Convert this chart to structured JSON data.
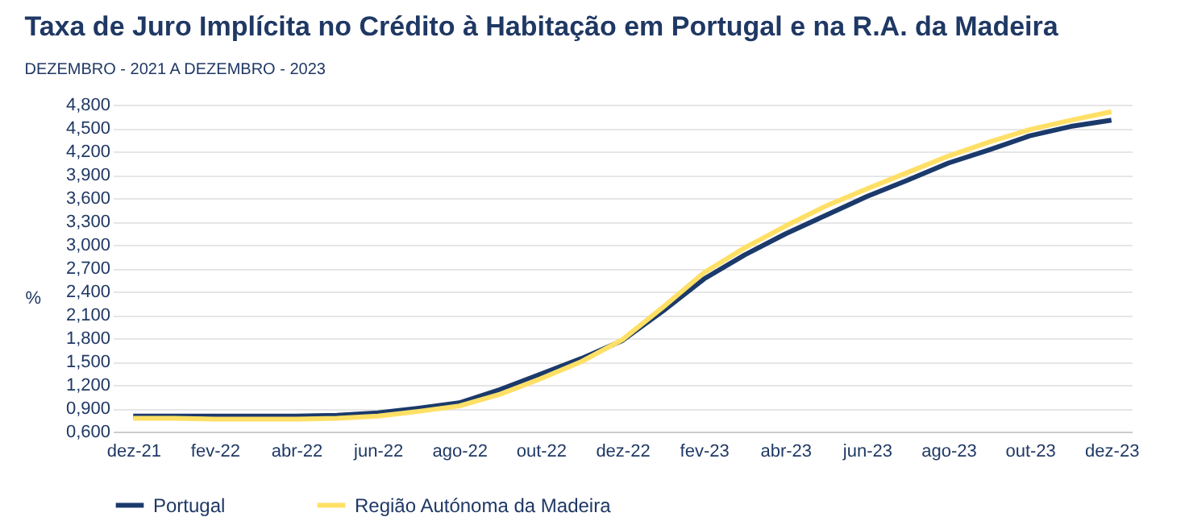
{
  "chart_data": {
    "type": "line",
    "title": "Taxa de Juro Implícita no Crédito à Habitação em Portugal e na R.A. da Madeira",
    "subtitle": "DEZEMBRO - 2021 A DEZEMBRO - 2023",
    "ylabel": "%",
    "categories": [
      "dez-21",
      null,
      "fev-22",
      null,
      "abr-22",
      null,
      "jun-22",
      null,
      "ago-22",
      null,
      "out-22",
      null,
      "dez-22",
      null,
      "fev-23",
      null,
      "abr-23",
      null,
      "jun-23",
      null,
      "ago-23",
      null,
      "out-23",
      null,
      "dez-23"
    ],
    "series": [
      {
        "name": "Portugal",
        "color": "#1b3a6b",
        "values": [
          0.8,
          0.8,
          0.8,
          0.8,
          0.8,
          0.81,
          0.84,
          0.9,
          0.97,
          1.14,
          1.34,
          1.54,
          1.77,
          2.15,
          2.56,
          2.87,
          3.14,
          3.38,
          3.62,
          3.83,
          4.05,
          4.22,
          4.4,
          4.52,
          4.6
        ]
      },
      {
        "name": "Região Autónoma da Madeira",
        "color": "#ffe066",
        "values": [
          0.77,
          0.77,
          0.76,
          0.76,
          0.76,
          0.77,
          0.8,
          0.86,
          0.93,
          1.08,
          1.28,
          1.5,
          1.78,
          2.2,
          2.64,
          2.96,
          3.24,
          3.5,
          3.72,
          3.93,
          4.14,
          4.32,
          4.48,
          4.6,
          4.71
        ]
      }
    ],
    "ylim": [
      0.6,
      4.8
    ],
    "yticks": [
      {
        "value": 0.6,
        "label": "0,600"
      },
      {
        "value": 0.9,
        "label": "0,900"
      },
      {
        "value": 1.2,
        "label": "1,200"
      },
      {
        "value": 1.5,
        "label": "1,500"
      },
      {
        "value": 1.8,
        "label": "1,800"
      },
      {
        "value": 2.1,
        "label": "2,100"
      },
      {
        "value": 2.4,
        "label": "2,400"
      },
      {
        "value": 2.7,
        "label": "2,700"
      },
      {
        "value": 3.0,
        "label": "3,000"
      },
      {
        "value": 3.3,
        "label": "3,300"
      },
      {
        "value": 3.6,
        "label": "3,600"
      },
      {
        "value": 3.9,
        "label": "3,900"
      },
      {
        "value": 4.2,
        "label": "4,200"
      },
      {
        "value": 4.5,
        "label": "4,500"
      },
      {
        "value": 4.8,
        "label": "4,800"
      }
    ],
    "grid": "y",
    "legend": "bottom",
    "marker": "none",
    "line_style": "solid"
  }
}
